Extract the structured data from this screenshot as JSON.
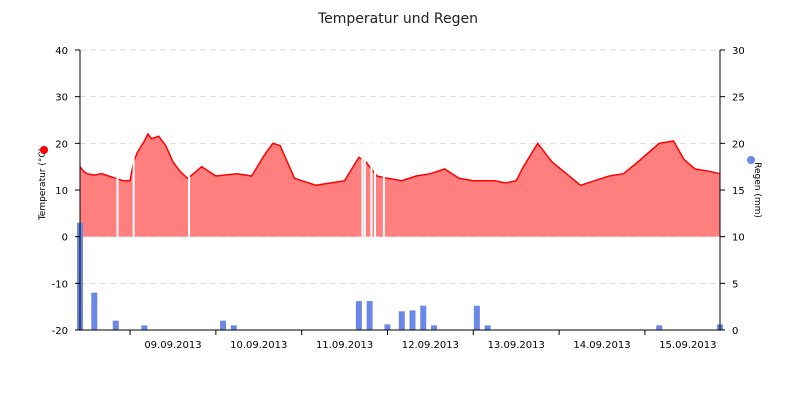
{
  "chart_data": {
    "type": "area",
    "title": "Temperatur und Regen",
    "x_tick_labels": [
      "09.09.2013",
      "10.09.2013",
      "11.09.2013",
      "12.09.2013",
      "13.09.2013",
      "14.09.2013",
      "15.09.2013"
    ],
    "x_range": [
      "2013-09-08T10:00",
      "2013-09-15T21:00"
    ],
    "y_left": {
      "label": "Temperatur (°C)",
      "range": [
        -20,
        40
      ],
      "ticks": [
        -20,
        -10,
        0,
        10,
        20,
        30,
        40
      ]
    },
    "y_right": {
      "label": "Regen (mm)",
      "range": [
        0,
        30
      ],
      "ticks": [
        0,
        5,
        10,
        15,
        20,
        25,
        30
      ]
    },
    "grid": true,
    "series": [
      {
        "name": "Temperatur",
        "type": "area",
        "axis": "left",
        "color": "#ff0000",
        "fill": "#ff7f7f",
        "x": [
          "2013-09-08T10:00",
          "2013-09-08T11:00",
          "2013-09-08T12:00",
          "2013-09-08T14:00",
          "2013-09-08T16:00",
          "2013-09-08T18:00",
          "2013-09-08T20:00",
          "2013-09-08T22:00",
          "2013-09-09T00:00",
          "2013-09-09T01:00",
          "2013-09-09T02:00",
          "2013-09-09T04:00",
          "2013-09-09T05:00",
          "2013-09-09T06:00",
          "2013-09-09T08:00",
          "2013-09-09T10:00",
          "2013-09-09T12:00",
          "2013-09-09T14:00",
          "2013-09-09T16:00",
          "2013-09-09T17:00",
          "2013-09-09T20:00",
          "2013-09-10T00:00",
          "2013-09-10T06:00",
          "2013-09-10T10:00",
          "2013-09-10T14:00",
          "2013-09-10T16:00",
          "2013-09-10T18:00",
          "2013-09-10T22:00",
          "2013-09-11T04:00",
          "2013-09-11T08:00",
          "2013-09-11T12:00",
          "2013-09-11T16:00",
          "2013-09-11T18:00",
          "2013-09-11T21:00",
          "2013-09-12T00:00",
          "2013-09-12T04:00",
          "2013-09-12T08:00",
          "2013-09-12T12:00",
          "2013-09-12T16:00",
          "2013-09-12T20:00",
          "2013-09-13T00:00",
          "2013-09-13T06:00",
          "2013-09-13T09:00",
          "2013-09-13T12:00",
          "2013-09-13T14:00",
          "2013-09-13T18:00",
          "2013-09-13T22:00",
          "2013-09-14T06:00",
          "2013-09-14T12:00",
          "2013-09-14T14:00",
          "2013-09-14T18:00",
          "2013-09-14T22:00",
          "2013-09-15T04:00",
          "2013-09-15T08:00",
          "2013-09-15T11:00",
          "2013-09-15T14:00",
          "2013-09-15T18:00",
          "2013-09-15T21:00"
        ],
        "values": [
          15,
          14,
          13.5,
          13.2,
          13.5,
          13,
          12.5,
          12,
          12,
          16,
          18,
          20.5,
          22,
          21,
          21.5,
          19.5,
          16,
          14,
          12.5,
          13,
          15,
          13,
          13.5,
          13,
          18,
          20,
          19.5,
          12.5,
          11,
          11.5,
          12,
          17,
          16,
          13,
          12.5,
          12,
          13,
          13.5,
          14.5,
          12.5,
          12,
          12,
          11.5,
          12,
          15,
          20,
          16,
          11,
          12.5,
          13,
          13.5,
          16,
          20,
          20.5,
          16.5,
          14.5,
          14,
          13.5
        ]
      },
      {
        "name": "Regen",
        "type": "bar",
        "axis": "right",
        "color": "#6b88e8",
        "x": [
          "2013-09-08T10:00",
          "2013-09-08T14:00",
          "2013-09-08T20:00",
          "2013-09-09T04:00",
          "2013-09-10T02:00",
          "2013-09-10T05:00",
          "2013-09-11T16:00",
          "2013-09-11T19:00",
          "2013-09-12T00:00",
          "2013-09-12T04:00",
          "2013-09-12T07:00",
          "2013-09-12T10:00",
          "2013-09-12T13:00",
          "2013-09-13T01:00",
          "2013-09-13T04:00",
          "2013-09-15T04:00",
          "2013-09-15T21:00"
        ],
        "values": [
          11.5,
          4,
          1,
          0.5,
          1,
          0.5,
          3.1,
          3.1,
          0.6,
          2,
          2.1,
          2.6,
          0.5,
          2.6,
          0.5,
          0.5,
          0.6
        ]
      }
    ],
    "gaps": [
      "2013-09-08T20:30",
      "2013-09-09T01:00",
      "2013-09-09T16:30",
      "2013-09-11T17:00",
      "2013-09-11T17:40",
      "2013-09-11T19:30",
      "2013-09-11T20:30",
      "2013-09-11T23:00"
    ]
  }
}
